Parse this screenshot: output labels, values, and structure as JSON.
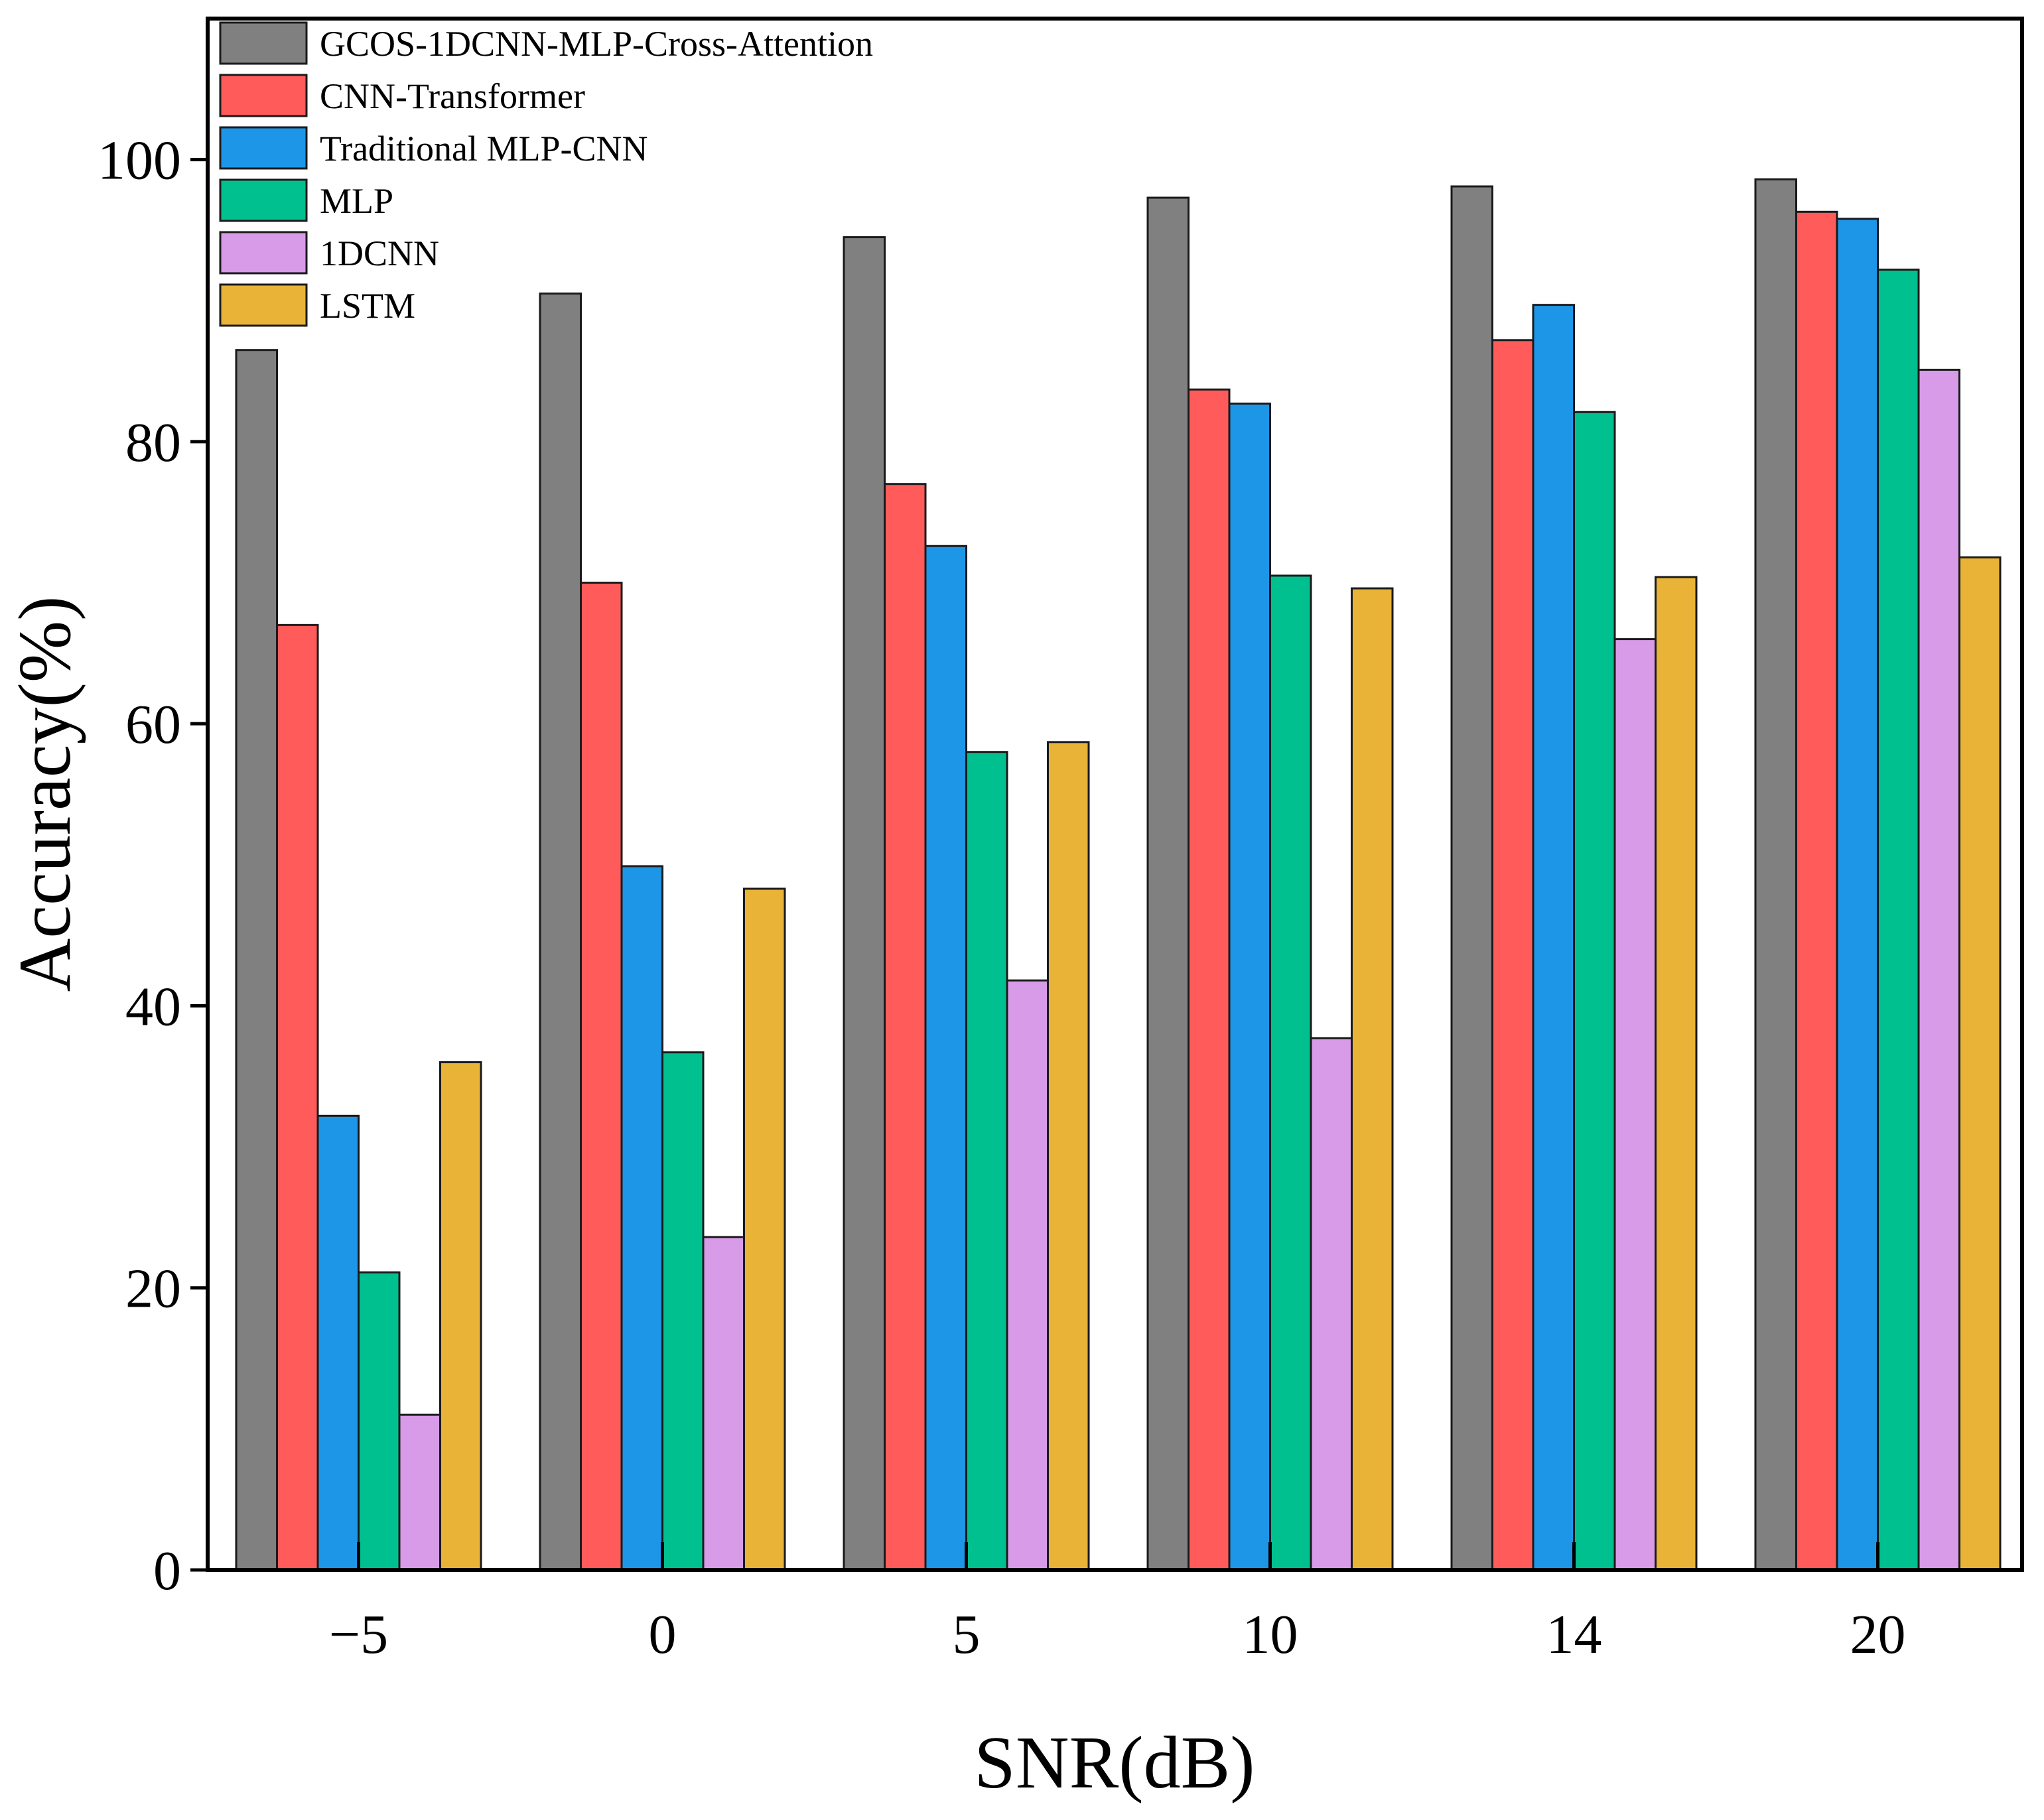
{
  "chart_data": {
    "type": "bar",
    "title": "",
    "xlabel": "SNR(dB)",
    "ylabel": "Accuracy(%)",
    "ylim": [
      0,
      110
    ],
    "yticks": [
      "0",
      "20",
      "40",
      "60",
      "80",
      "100"
    ],
    "categories": [
      "−5",
      "0",
      "5",
      "10",
      "14",
      "20"
    ],
    "grid": false,
    "legend_position": "top-left",
    "series": [
      {
        "name": "GCOS-1DCNN-MLP-Cross-Attention",
        "color": "#808080",
        "values": [
          86.5,
          90.5,
          94.5,
          97.3,
          98.1,
          98.6
        ]
      },
      {
        "name": "CNN-Transformer",
        "color": "#FF5B5B",
        "values": [
          67.0,
          70.0,
          77.0,
          83.7,
          87.2,
          96.3
        ]
      },
      {
        "name": "Traditional MLP-CNN",
        "color": "#1E96E8",
        "values": [
          32.2,
          49.9,
          72.6,
          82.7,
          89.7,
          95.8
        ]
      },
      {
        "name": "MLP",
        "color": "#00C08F",
        "values": [
          21.1,
          36.7,
          58.0,
          70.5,
          82.1,
          92.2
        ]
      },
      {
        "name": "1DCNN",
        "color": "#D89BE8",
        "values": [
          11.0,
          23.6,
          41.8,
          37.7,
          66.0,
          85.1
        ]
      },
      {
        "name": "LSTM",
        "color": "#E8B337",
        "values": [
          36.0,
          48.3,
          58.7,
          69.6,
          70.4,
          71.8
        ]
      }
    ]
  }
}
